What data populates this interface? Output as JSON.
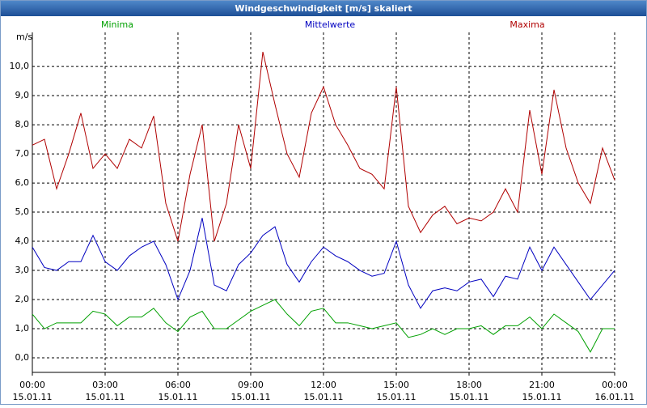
{
  "chart_data": {
    "type": "line",
    "title": "Windgeschwindigkeit [m/s] skaliert",
    "y_label": "m/s",
    "x": [
      0,
      0.5,
      1,
      1.5,
      2,
      2.5,
      3,
      3.5,
      4,
      4.5,
      5,
      5.5,
      6,
      6.5,
      7,
      7.5,
      8,
      8.5,
      9,
      9.5,
      10,
      10.5,
      11,
      11.5,
      12,
      12.5,
      13,
      13.5,
      14,
      14.5,
      15,
      15.5,
      16,
      16.5,
      17,
      17.5,
      18,
      18.5,
      19,
      19.5,
      20,
      20.5,
      21,
      21.5,
      22,
      22.5,
      23,
      23.5,
      24
    ],
    "series": [
      {
        "name": "Minima",
        "color": "#00a000",
        "values": [
          1.5,
          1.0,
          1.2,
          1.2,
          1.2,
          1.6,
          1.5,
          1.1,
          1.4,
          1.4,
          1.7,
          1.2,
          0.9,
          1.4,
          1.6,
          1.0,
          1.0,
          1.3,
          1.6,
          1.8,
          2.0,
          1.5,
          1.1,
          1.6,
          1.7,
          1.2,
          1.2,
          1.1,
          1.0,
          1.1,
          1.2,
          0.7,
          0.8,
          1.0,
          0.8,
          1.0,
          1.0,
          1.1,
          0.8,
          1.1,
          1.1,
          1.4,
          1.0,
          1.5,
          1.2,
          0.9,
          0.2,
          1.0,
          1.0
        ]
      },
      {
        "name": "Mittelwerte",
        "color": "#0000c0",
        "values": [
          3.8,
          3.1,
          3.0,
          3.3,
          3.3,
          4.2,
          3.3,
          3.0,
          3.5,
          3.8,
          4.0,
          3.2,
          2.0,
          3.0,
          4.8,
          2.5,
          2.3,
          3.2,
          3.6,
          4.2,
          4.5,
          3.2,
          2.6,
          3.3,
          3.8,
          3.5,
          3.3,
          3.0,
          2.8,
          2.9,
          4.0,
          2.5,
          1.7,
          2.3,
          2.4,
          2.3,
          2.6,
          2.7,
          2.1,
          2.8,
          2.7,
          3.8,
          3.0,
          3.8,
          3.2,
          2.6,
          2.0,
          2.5,
          3.0
        ]
      },
      {
        "name": "Maxima",
        "color": "#b00000",
        "values": [
          7.3,
          7.5,
          5.8,
          7.0,
          8.4,
          6.5,
          7.0,
          6.5,
          7.5,
          7.2,
          8.3,
          5.3,
          4.0,
          6.3,
          8.0,
          4.0,
          5.3,
          8.0,
          6.5,
          10.5,
          8.7,
          7.0,
          6.2,
          8.4,
          9.3,
          8.0,
          7.3,
          6.5,
          6.3,
          5.8,
          9.3,
          5.2,
          4.3,
          4.9,
          5.2,
          4.6,
          4.8,
          4.7,
          5.0,
          5.8,
          5.0,
          8.5,
          6.3,
          9.2,
          7.2,
          6.0,
          5.3,
          7.2,
          6.1
        ]
      }
    ],
    "xlim": [
      0,
      24
    ],
    "xticks": [
      {
        "value": 0,
        "label": "00:00",
        "date": "15.01.11"
      },
      {
        "value": 3,
        "label": "03:00",
        "date": "15.01.11"
      },
      {
        "value": 6,
        "label": "06:00",
        "date": "15.01.11"
      },
      {
        "value": 9,
        "label": "09:00",
        "date": "15.01.11"
      },
      {
        "value": 12,
        "label": "12:00",
        "date": "15.01.11"
      },
      {
        "value": 15,
        "label": "15:00",
        "date": "15.01.11"
      },
      {
        "value": 18,
        "label": "18:00",
        "date": "15.01.11"
      },
      {
        "value": 21,
        "label": "21:00",
        "date": "15.01.11"
      },
      {
        "value": 24,
        "label": "00:00",
        "date": "16.01.11"
      }
    ],
    "ylim": [
      -0.5,
      11.17
    ],
    "yticks": [
      {
        "value": 0,
        "label": "0,0"
      },
      {
        "value": 1,
        "label": "1,0"
      },
      {
        "value": 2,
        "label": "2,0"
      },
      {
        "value": 3,
        "label": "3,0"
      },
      {
        "value": 4,
        "label": "4,0"
      },
      {
        "value": 5,
        "label": "5,0"
      },
      {
        "value": 6,
        "label": "6,0"
      },
      {
        "value": 7,
        "label": "7,0"
      },
      {
        "value": 8,
        "label": "8,0"
      },
      {
        "value": 9,
        "label": "9,0"
      },
      {
        "value": 10,
        "label": "10,0"
      }
    ],
    "grid": true
  }
}
